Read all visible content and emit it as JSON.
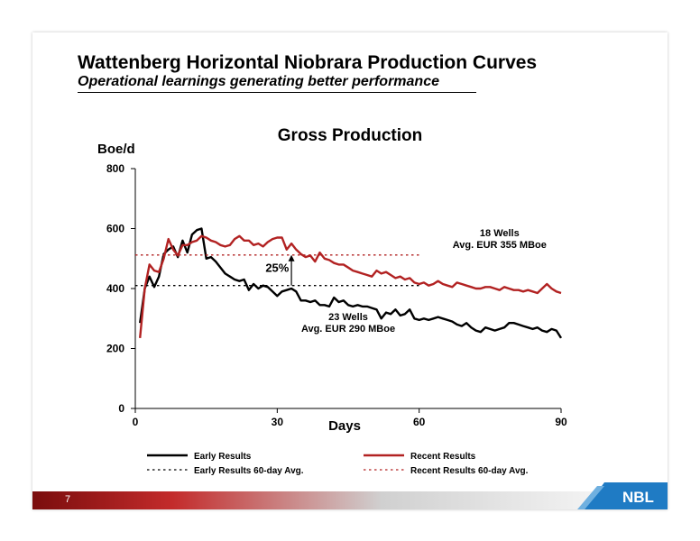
{
  "slide": {
    "title": "Wattenberg Horizontal Niobrara Production Curves",
    "subtitle": "Operational learnings generating better performance",
    "page_number": "7",
    "logo_text": "NBL"
  },
  "colors": {
    "early": "#000000",
    "recent": "#b22222",
    "footer_dark": "#7a0d0d",
    "logo_blue": "#1f7bc4"
  },
  "chart_data": {
    "type": "line",
    "title": "Gross Production",
    "xlabel": "Days",
    "ylabel": "Boe/d",
    "xlim": [
      0,
      90
    ],
    "ylim": [
      0,
      800
    ],
    "x_ticks": [
      0,
      30,
      60,
      90
    ],
    "y_ticks": [
      0,
      200,
      400,
      600,
      800
    ],
    "grid": false,
    "legend_position": "bottom",
    "series": [
      {
        "name": "Early Results",
        "style": "solid",
        "x": [
          1,
          2,
          3,
          4,
          5,
          6,
          7,
          8,
          9,
          10,
          11,
          12,
          13,
          14,
          15,
          16,
          17,
          18,
          19,
          20,
          21,
          22,
          23,
          24,
          25,
          26,
          27,
          28,
          29,
          30,
          31,
          32,
          33,
          34,
          35,
          36,
          37,
          38,
          39,
          40,
          41,
          42,
          43,
          44,
          45,
          46,
          47,
          48,
          49,
          50,
          51,
          52,
          53,
          54,
          55,
          56,
          57,
          58,
          59,
          60,
          61,
          62,
          63,
          64,
          65,
          66,
          67,
          68,
          69,
          70,
          71,
          72,
          73,
          74,
          75,
          76,
          77,
          78,
          79,
          80,
          81,
          82,
          83,
          84,
          85,
          86,
          87,
          88,
          89,
          90
        ],
        "values": [
          285,
          400,
          440,
          405,
          440,
          515,
          530,
          540,
          505,
          560,
          520,
          580,
          595,
          600,
          500,
          505,
          490,
          470,
          450,
          440,
          430,
          425,
          430,
          395,
          415,
          400,
          410,
          405,
          390,
          375,
          390,
          395,
          400,
          390,
          360,
          360,
          355,
          360,
          345,
          345,
          340,
          370,
          355,
          360,
          345,
          340,
          345,
          340,
          340,
          335,
          330,
          300,
          320,
          315,
          330,
          310,
          315,
          330,
          300,
          295,
          300,
          295,
          300,
          305,
          300,
          295,
          290,
          280,
          275,
          285,
          270,
          260,
          255,
          270,
          265,
          260,
          265,
          270,
          285,
          285,
          280,
          275,
          270,
          265,
          270,
          260,
          255,
          265,
          260,
          235
        ]
      },
      {
        "name": "Recent Results",
        "style": "solid",
        "x": [
          1,
          2,
          3,
          4,
          5,
          6,
          7,
          8,
          9,
          10,
          11,
          12,
          13,
          14,
          15,
          16,
          17,
          18,
          19,
          20,
          21,
          22,
          23,
          24,
          25,
          26,
          27,
          28,
          29,
          30,
          31,
          32,
          33,
          34,
          35,
          36,
          37,
          38,
          39,
          40,
          41,
          42,
          43,
          44,
          45,
          46,
          47,
          48,
          49,
          50,
          51,
          52,
          53,
          54,
          55,
          56,
          57,
          58,
          59,
          60,
          61,
          62,
          63,
          64,
          65,
          66,
          67,
          68,
          69,
          70,
          71,
          72,
          73,
          74,
          75,
          76,
          77,
          78,
          79,
          80,
          81,
          82,
          83,
          84,
          85,
          86,
          87,
          88,
          89,
          90
        ],
        "values": [
          235,
          400,
          480,
          460,
          455,
          500,
          565,
          530,
          510,
          545,
          545,
          555,
          560,
          575,
          570,
          560,
          555,
          545,
          540,
          545,
          565,
          575,
          560,
          560,
          545,
          550,
          540,
          555,
          565,
          570,
          570,
          530,
          550,
          530,
          515,
          505,
          510,
          490,
          520,
          500,
          495,
          485,
          480,
          480,
          470,
          460,
          455,
          450,
          445,
          440,
          460,
          450,
          455,
          445,
          435,
          440,
          430,
          435,
          420,
          415,
          420,
          410,
          415,
          425,
          415,
          410,
          405,
          420,
          415,
          410,
          405,
          400,
          400,
          405,
          405,
          400,
          395,
          405,
          400,
          395,
          395,
          390,
          395,
          390,
          385,
          400,
          415,
          400,
          390,
          385
        ]
      },
      {
        "name": "Early Results 60-day Avg.",
        "style": "dotted",
        "x": [
          0,
          60
        ],
        "values": [
          410,
          410
        ]
      },
      {
        "name": "Recent Results 60-day Avg.",
        "style": "dotted",
        "x": [
          0,
          60
        ],
        "values": [
          512,
          512
        ]
      }
    ],
    "annotations": [
      {
        "text": "18 Wells",
        "x": 77,
        "y": 575
      },
      {
        "text": "Avg. EUR 355 MBoe",
        "x": 77,
        "y": 535
      },
      {
        "text": "23 Wells",
        "x": 45,
        "y": 295
      },
      {
        "text": "Avg. EUR 290 MBoe",
        "x": 45,
        "y": 255
      },
      {
        "text": "25%",
        "x": 30,
        "y": 455
      }
    ]
  }
}
